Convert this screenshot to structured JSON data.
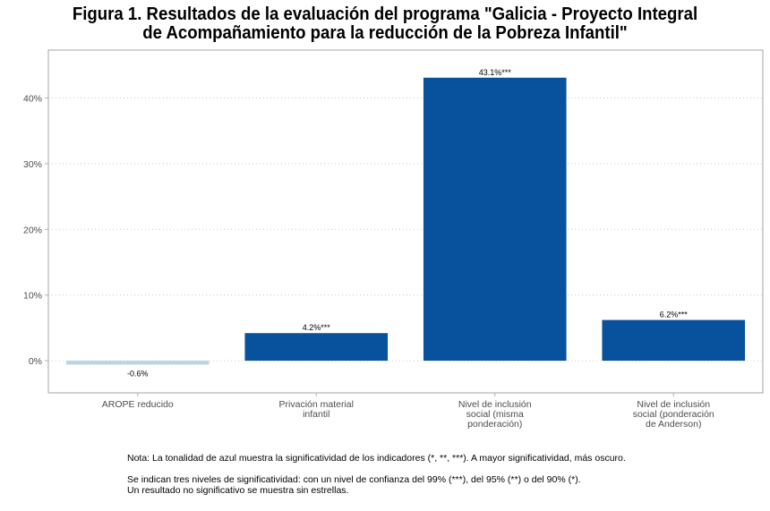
{
  "chart_data": {
    "type": "bar",
    "title": [
      "Figura 1. Resultados de la evaluación del programa \"Galicia - Proyecto Integral",
      "de Acompañamiento para la reducción de la Pobreza Infantil\""
    ],
    "categories": [
      [
        "AROPE reducido"
      ],
      [
        "Privación material",
        "infantil"
      ],
      [
        "Nivel de inclusión",
        "social (misma",
        "ponderación)"
      ],
      [
        "Nivel de inclusión",
        "social (ponderación",
        "de Anderson)"
      ]
    ],
    "values": [
      -0.6,
      4.2,
      43.1,
      6.2
    ],
    "data_labels": [
      "-0.6%",
      "4.2%***",
      "43.1%***",
      "6.2%***"
    ],
    "bar_colors": [
      "#bcd4e3",
      "#08519c",
      "#08519c",
      "#08519c"
    ],
    "ylim": [
      -4.9,
      47.3
    ],
    "yticks": [
      0,
      10,
      20,
      30,
      40
    ],
    "ytick_labels": [
      "0%",
      "10%",
      "20%",
      "30%",
      "40%"
    ],
    "xlabel": "",
    "ylabel": "",
    "grid": true,
    "legend": "none"
  },
  "notes": {
    "line1": "Nota: La tonalidad de azul muestra la significatividad de los indicadores (*, **, ***). A mayor significatividad, más oscuro.",
    "line2": "Se indican tres niveles de significatividad: con un nivel de confianza del 99% (***), del 95% (**) o del 90% (*).",
    "line3": "Un resultado no significativo se muestra sin estrellas."
  }
}
